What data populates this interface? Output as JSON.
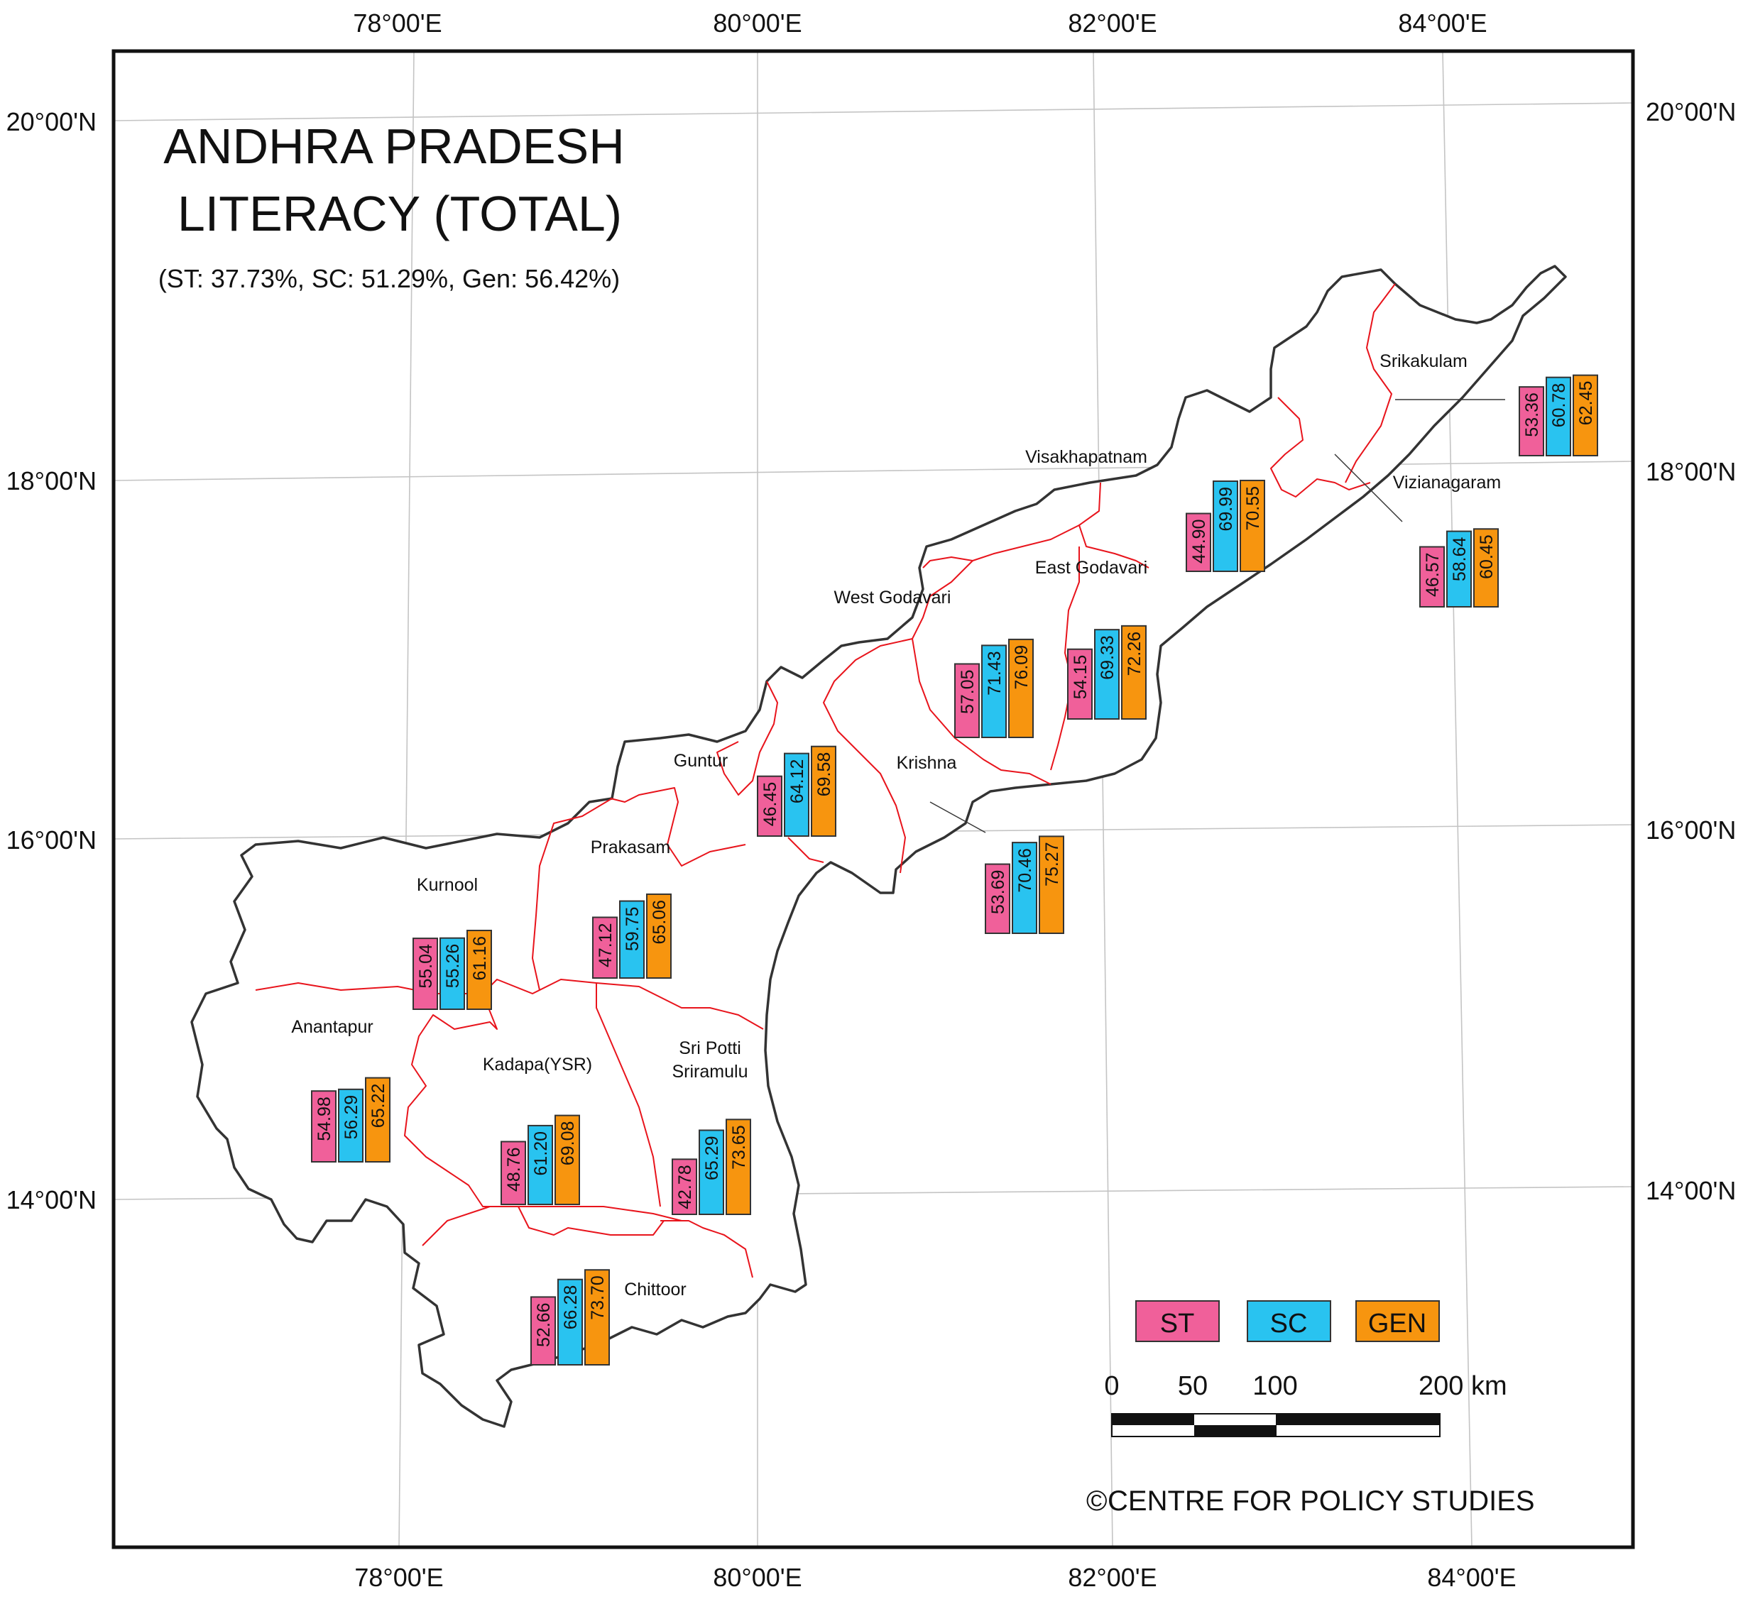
{
  "title_line1": "ANDHRA PRADESH",
  "title_line2": "LITERACY (TOTAL)",
  "subtitle": "(ST: 37.73%, SC: 51.29%, Gen: 56.42%)",
  "longitude_labels": [
    "78°00'E",
    "80°00'E",
    "82°00'E",
    "84°00'E"
  ],
  "latitude_labels": [
    "20°00'N",
    "18°00'N",
    "16°00'N",
    "14°00'N"
  ],
  "legend": [
    {
      "label": "ST",
      "color": "#f0609a"
    },
    {
      "label": "SC",
      "color": "#29c3f0"
    },
    {
      "label": "GEN",
      "color": "#f7950f"
    }
  ],
  "scale_bar": {
    "ticks": [
      "0",
      "50",
      "100",
      "200 km"
    ]
  },
  "copyright": "CENTRE FOR POLICY STUDIES",
  "copyright_symbol": "©",
  "chart_data": {
    "type": "bar",
    "title": "ANDHRA PRADESH LITERACY (TOTAL)",
    "unit": "%",
    "series_names": [
      "ST",
      "SC",
      "GEN"
    ],
    "districts": [
      {
        "name": "Srikakulam",
        "values": [
          53.36,
          60.78,
          62.45
        ]
      },
      {
        "name": "Vizianagaram",
        "values": [
          46.57,
          58.64,
          60.45
        ]
      },
      {
        "name": "Visakhapatnam",
        "values": [
          44.9,
          69.99,
          70.55
        ]
      },
      {
        "name": "East Godavari",
        "values": [
          54.15,
          69.33,
          72.26
        ]
      },
      {
        "name": "West Godavari",
        "values": [
          57.05,
          71.43,
          76.09
        ]
      },
      {
        "name": "Krishna",
        "values": [
          53.69,
          70.46,
          75.27
        ]
      },
      {
        "name": "Guntur",
        "values": [
          46.45,
          64.12,
          69.58
        ]
      },
      {
        "name": "Prakasam",
        "values": [
          47.12,
          59.75,
          65.06
        ]
      },
      {
        "name": "Kurnool",
        "values": [
          55.04,
          55.26,
          61.16
        ]
      },
      {
        "name": "Anantapur",
        "values": [
          54.98,
          56.29,
          65.22
        ]
      },
      {
        "name": "Kadapa(YSR)",
        "values": [
          48.76,
          61.2,
          69.08
        ]
      },
      {
        "name": "Sri Potti Sriramulu",
        "values": [
          42.78,
          65.29,
          73.65
        ]
      },
      {
        "name": "Chittoor",
        "values": [
          52.66,
          66.28,
          73.7
        ]
      }
    ]
  }
}
